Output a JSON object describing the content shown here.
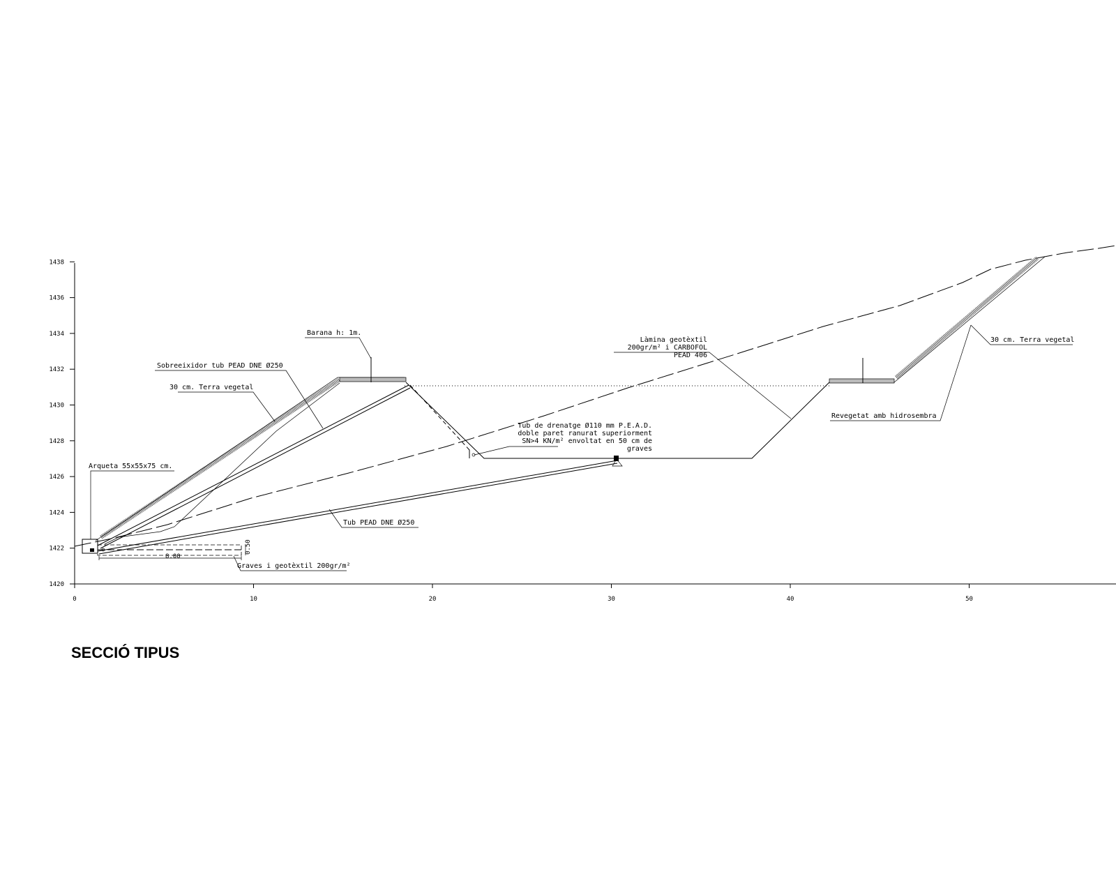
{
  "title": "SECCIÓ TIPUS",
  "axes": {
    "y_ticks": [
      "1420",
      "1422",
      "1424",
      "1426",
      "1428",
      "1430",
      "1432",
      "1434",
      "1436",
      "1438"
    ],
    "x_ticks": [
      "0",
      "10",
      "20",
      "30",
      "40",
      "50"
    ]
  },
  "annotations": {
    "barana": "Barana h: 1m.",
    "sobreeixidor": "Sobreeixidor tub PEAD DNE Ø250",
    "terra_vegetal_left": "30 cm. Terra vegetal",
    "arqueta": "Arqueta 55x55x75 cm.",
    "tub_pead": "Tub PEAD DNE Ø250",
    "graves": "Graves i geotèxtil 200gr/m²",
    "dim_width": "8.00",
    "dim_height": "0.50",
    "lamina": [
      "Làmina geotèxtil",
      "200gr/m² i CARBOFOL",
      "PEAD 406"
    ],
    "tub_drenatge": [
      "Tub de drenatge Ø110 mm P.E.A.D.",
      "doble paret ranurat superiorment",
      "SN>4 KN/m² envoltat en 50 cm de",
      "graves"
    ],
    "terra_vegetal_right": "30 cm. Terra vegetal",
    "revegetat": "Revegetat amb hidrosembra"
  }
}
